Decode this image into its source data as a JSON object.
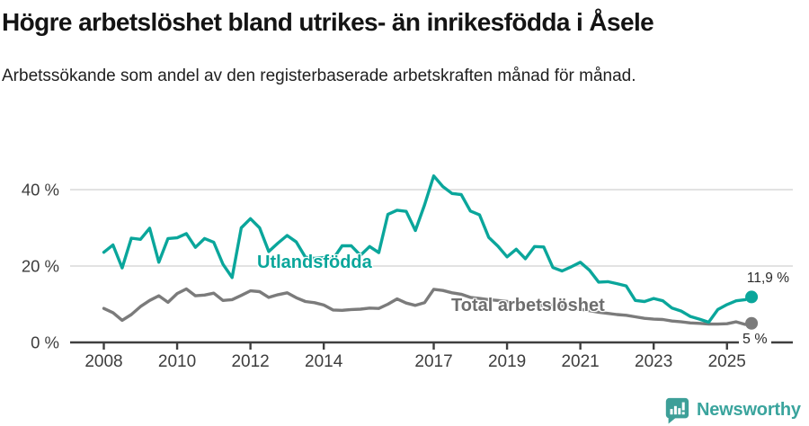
{
  "header": {
    "title": "Högre arbetslöshet bland utrikes- än inrikesfödda i Åsele",
    "subtitle": "Arbetssökande som andel av den registerbaserade arbetskraften månad för månad."
  },
  "chart_data": {
    "type": "line",
    "title": "Högre arbetslöshet bland utrikes- än inrikesfödda i Åsele",
    "subtitle": "Arbetssökande som andel av den registerbaserade arbetskraften månad för månad.",
    "unit": "%",
    "grid": true,
    "legend_position": "inline-labels-on-lines",
    "x_axis": {
      "range": [
        2007.6,
        2026.3
      ],
      "tick_years": [
        2008,
        2010,
        2012,
        2014,
        2017,
        2019,
        2021,
        2023,
        2025
      ],
      "tick_labels": [
        "2008",
        "2010",
        "2012",
        "2014",
        "2017",
        "2019",
        "2021",
        "2023",
        "2025"
      ]
    },
    "y_axis": {
      "range": [
        0,
        46
      ],
      "tick_values": [
        0,
        20,
        40
      ],
      "tick_labels": [
        "0 %",
        "20 %",
        "40 %"
      ]
    },
    "x": [
      2008,
      2008.25,
      2008.5,
      2008.75,
      2009,
      2009.25,
      2009.5,
      2009.75,
      2010,
      2010.25,
      2010.5,
      2010.75,
      2011,
      2011.25,
      2011.5,
      2011.75,
      2012,
      2012.25,
      2012.5,
      2012.75,
      2013,
      2013.25,
      2013.5,
      2013.75,
      2014,
      2014.25,
      2014.5,
      2014.75,
      2015,
      2015.25,
      2015.5,
      2015.75,
      2016,
      2016.25,
      2016.5,
      2016.75,
      2017,
      2017.25,
      2017.5,
      2017.75,
      2018,
      2018.25,
      2018.5,
      2018.75,
      2019,
      2019.25,
      2019.5,
      2019.75,
      2020,
      2020.25,
      2020.5,
      2020.75,
      2021,
      2021.25,
      2021.5,
      2021.75,
      2022,
      2022.25,
      2022.5,
      2022.75,
      2023,
      2023.25,
      2023.5,
      2023.75,
      2024,
      2024.25,
      2024.5,
      2024.75,
      2025,
      2025.25,
      2025.5,
      2025.67
    ],
    "series": [
      {
        "name": "Utlandsfödda",
        "color": "#0aa69b",
        "end_label": "11,9 %",
        "end_value": 11.9,
        "values": [
          23.6,
          25.5,
          19.5,
          27.3,
          27.0,
          29.9,
          21.0,
          27.2,
          27.4,
          28.5,
          24.9,
          27.2,
          26.2,
          20.5,
          17.0,
          30.0,
          32.4,
          30.0,
          23.8,
          26.0,
          28.0,
          26.3,
          22.3,
          22.0,
          22.2,
          21.8,
          25.3,
          25.3,
          22.8,
          25.1,
          23.5,
          33.5,
          34.6,
          34.3,
          29.3,
          36.0,
          43.6,
          40.8,
          39.0,
          38.7,
          34.4,
          33.4,
          27.5,
          25.2,
          22.4,
          24.4,
          21.9,
          25.1,
          25.0,
          19.6,
          18.7,
          19.8,
          21.0,
          18.9,
          15.8,
          15.9,
          15.4,
          14.8,
          11.0,
          10.7,
          11.5,
          10.9,
          9.0,
          8.2,
          6.8,
          6.1,
          5.3,
          8.6,
          9.9,
          10.9,
          11.2,
          11.9
        ]
      },
      {
        "name": "Total arbetslöshet",
        "color": "#7b7b7b",
        "end_label": "5 %",
        "end_value": 5,
        "values": [
          8.9,
          7.8,
          5.8,
          7.3,
          9.4,
          11.0,
          12.2,
          10.5,
          12.8,
          14.0,
          12.2,
          12.4,
          12.9,
          11.0,
          11.2,
          12.3,
          13.5,
          13.3,
          11.8,
          12.5,
          13.0,
          11.7,
          10.7,
          10.4,
          9.8,
          8.5,
          8.4,
          8.6,
          8.7,
          9.0,
          8.9,
          10.0,
          11.4,
          10.3,
          9.7,
          10.4,
          13.9,
          13.6,
          13.0,
          12.6,
          11.8,
          11.5,
          11.2,
          11.0,
          10.7,
          10.4,
          10.1,
          9.9,
          9.6,
          9.8,
          9.5,
          9.1,
          8.7,
          8.3,
          7.9,
          7.6,
          7.3,
          7.1,
          6.7,
          6.3,
          6.1,
          6.0,
          5.6,
          5.4,
          5.1,
          5.0,
          4.8,
          4.8,
          4.9,
          5.4,
          4.7,
          5.0
        ]
      }
    ]
  },
  "colors": {
    "accent_teal": "#0aa69b",
    "line_gray": "#7b7b7b",
    "axis": "#3f3f3f",
    "gridline": "#d9d9d9",
    "brand_teal": "#3aa49d"
  },
  "footer": {
    "brand": "Newsworthy",
    "logo_icon": "bar-chart-speech-bubble-icon"
  }
}
